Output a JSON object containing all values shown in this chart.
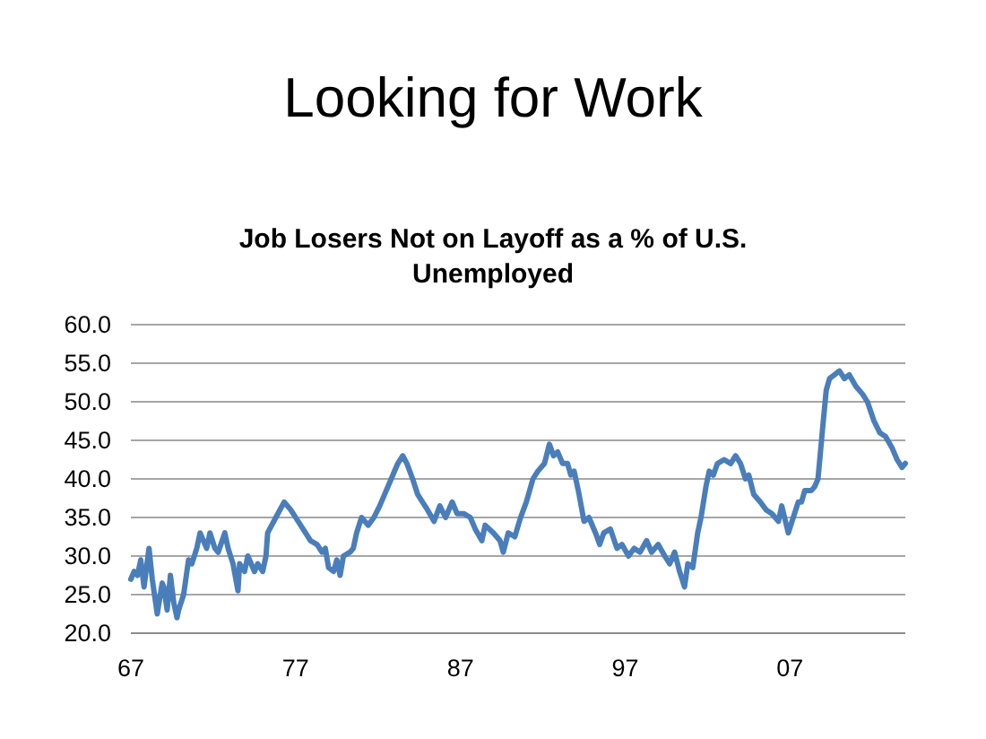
{
  "chart_data": {
    "type": "line",
    "title": "Looking for Work",
    "subtitle": "Job Losers Not on Layoff as a % of U.S. Unemployed",
    "x": [
      1967.0,
      1967.2,
      1967.4,
      1967.6,
      1967.8,
      1968.1,
      1968.3,
      1968.6,
      1968.9,
      1969.0,
      1969.2,
      1969.4,
      1969.6,
      1969.8,
      1969.9,
      1970.2,
      1970.5,
      1970.7,
      1971.0,
      1971.2,
      1971.6,
      1971.8,
      1972.1,
      1972.3,
      1972.7,
      1972.9,
      1973.2,
      1973.5,
      1973.6,
      1973.9,
      1974.1,
      1974.5,
      1974.7,
      1975.0,
      1975.2,
      1975.3,
      1975.8,
      1976.3,
      1976.7,
      1977.0,
      1977.6,
      1977.9,
      1978.3,
      1978.6,
      1978.8,
      1979.0,
      1979.3,
      1979.5,
      1979.7,
      1979.9,
      1980.3,
      1980.5,
      1980.7,
      1981.0,
      1981.4,
      1981.75,
      1982.1,
      1982.5,
      1982.8,
      1983.2,
      1983.5,
      1983.75,
      1984.1,
      1984.4,
      1984.7,
      1985.0,
      1985.4,
      1985.75,
      1986.1,
      1986.5,
      1986.8,
      1987.2,
      1987.6,
      1987.9,
      1988.3,
      1988.5,
      1989.0,
      1989.4,
      1989.6,
      1989.9,
      1990.3,
      1990.65,
      1991.0,
      1991.4,
      1991.7,
      1992.1,
      1992.4,
      1992.65,
      1992.9,
      1993.2,
      1993.5,
      1993.7,
      1993.9,
      1994.2,
      1994.5,
      1994.8,
      1995.2,
      1995.45,
      1995.7,
      1996.1,
      1996.5,
      1996.8,
      1997.2,
      1997.55,
      1997.9,
      1998.3,
      1998.6,
      1999.0,
      1999.4,
      1999.7,
      2000.0,
      2000.3,
      2000.6,
      2000.8,
      2001.1,
      2001.4,
      2001.6,
      2001.9,
      2002.1,
      2002.35,
      2002.6,
      2003.0,
      2003.4,
      2003.7,
      2004.0,
      2004.3,
      2004.5,
      2004.8,
      2005.2,
      2005.55,
      2005.9,
      2006.3,
      2006.5,
      2006.9,
      2007.2,
      2007.5,
      2007.7,
      2007.9,
      2008.3,
      2008.5,
      2008.7,
      2009.0,
      2009.2,
      2009.4,
      2009.7,
      2010.0,
      2010.3,
      2010.6,
      2011.0,
      2011.4,
      2011.7,
      2012.1,
      2012.45,
      2012.8,
      2013.2,
      2013.5,
      2013.8,
      2014.0
    ],
    "values": [
      27,
      28,
      27.5,
      29.5,
      26,
      31,
      27,
      22.5,
      26.5,
      26,
      23,
      27.5,
      24,
      22,
      23,
      25,
      29.5,
      29,
      31,
      33,
      31,
      33,
      31,
      30.5,
      33,
      31,
      29,
      25.5,
      29,
      28,
      30,
      28,
      29,
      28,
      30,
      33,
      35,
      37,
      36,
      35,
      33,
      32,
      31.5,
      30.5,
      31,
      28.5,
      28,
      29.5,
      27.5,
      30,
      30.5,
      31,
      33,
      35,
      34,
      35,
      36.5,
      38.5,
      40,
      42,
      43,
      42,
      40,
      38,
      37,
      36,
      34.5,
      36.5,
      35,
      37,
      35.5,
      35.5,
      35,
      33.5,
      32,
      34,
      33,
      32,
      30.5,
      33,
      32.5,
      35,
      37,
      40,
      41,
      42,
      44.5,
      43,
      43.5,
      42,
      42,
      40.5,
      41,
      38,
      34.5,
      35,
      33,
      31.5,
      33,
      33.5,
      31,
      31.5,
      30,
      31,
      30.5,
      32,
      30.5,
      31.5,
      30,
      29,
      30.5,
      28,
      26,
      29,
      28.5,
      33,
      35,
      39,
      41,
      40.5,
      42,
      42.5,
      42,
      43,
      42,
      40,
      40.5,
      38,
      37,
      36,
      35.5,
      34.5,
      36.5,
      33,
      35,
      37,
      37,
      38.5,
      38.5,
      39,
      40,
      47,
      51.5,
      53,
      53.5,
      54,
      53,
      53.5,
      52,
      51,
      50,
      47.5,
      46,
      45.5,
      44,
      42.5,
      41.5,
      42
    ],
    "color": "#4a7ebb",
    "line_style": "solid",
    "xlim": [
      1967,
      2014
    ],
    "xticks": [
      {
        "value": 1967,
        "label": "67"
      },
      {
        "value": 1977,
        "label": "77"
      },
      {
        "value": 1987,
        "label": "87"
      },
      {
        "value": 1997,
        "label": "97"
      },
      {
        "value": 2007,
        "label": "07"
      }
    ],
    "ylim": [
      20,
      60
    ],
    "yticks": [
      {
        "value": 20,
        "label": "20.0"
      },
      {
        "value": 25,
        "label": "25.0"
      },
      {
        "value": 30,
        "label": "30.0"
      },
      {
        "value": 35,
        "label": "35.0"
      },
      {
        "value": 40,
        "label": "40.0"
      },
      {
        "value": 45,
        "label": "45.0"
      },
      {
        "value": 50,
        "label": "50.0"
      },
      {
        "value": 55,
        "label": "55.0"
      },
      {
        "value": 60,
        "label": "60.0"
      }
    ],
    "grid": "y"
  }
}
